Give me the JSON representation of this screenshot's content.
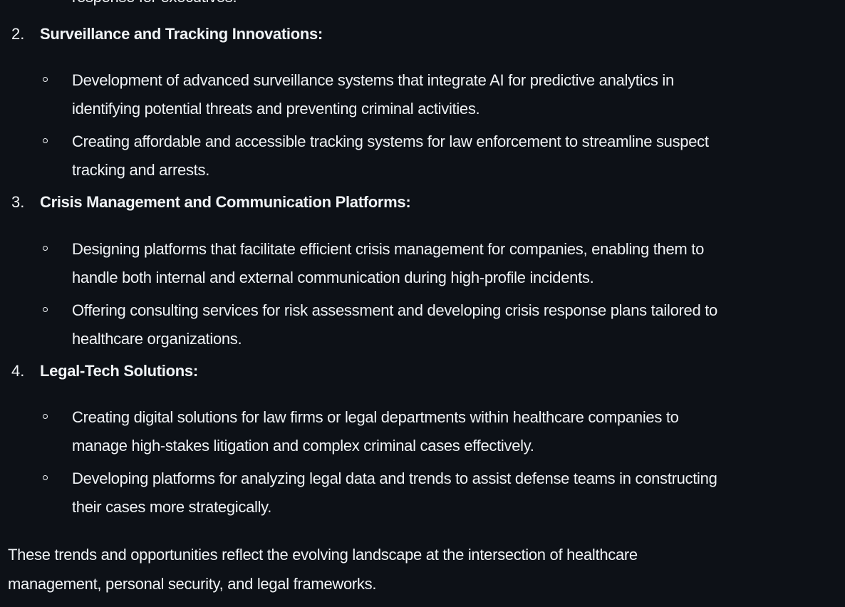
{
  "partial_top_line": "response for executives.",
  "sections": [
    {
      "number": "2.",
      "title": "Surveillance and Tracking Innovations:",
      "bullets": [
        {
          "line1": "Development of advanced surveillance systems that integrate AI for predictive analytics in",
          "line2": "identifying potential threats and preventing criminal activities."
        },
        {
          "line1": "Creating affordable and accessible tracking systems for law enforcement to streamline suspect",
          "line2": "tracking and arrests."
        }
      ]
    },
    {
      "number": "3.",
      "title": "Crisis Management and Communication Platforms:",
      "bullets": [
        {
          "line1": "Designing platforms that facilitate efficient crisis management for companies, enabling them to",
          "line2": "handle both internal and external communication during high-profile incidents."
        },
        {
          "line1": "Offering consulting services for risk assessment and developing crisis response plans tailored to",
          "line2": "healthcare organizations."
        }
      ]
    },
    {
      "number": "4.",
      "title": "Legal-Tech Solutions:",
      "bullets": [
        {
          "line1": "Creating digital solutions for law firms or legal departments within healthcare companies to",
          "line2": "manage high-stakes litigation and complex criminal cases effectively."
        },
        {
          "line1": "Developing platforms for analyzing legal data and trends to assist defense teams in constructing",
          "line2": "their cases more strategically."
        }
      ]
    }
  ],
  "closing": {
    "line1": "These trends and opportunities reflect the evolving landscape at the intersection of healthcare",
    "line2": "management, personal security, and legal frameworks."
  }
}
